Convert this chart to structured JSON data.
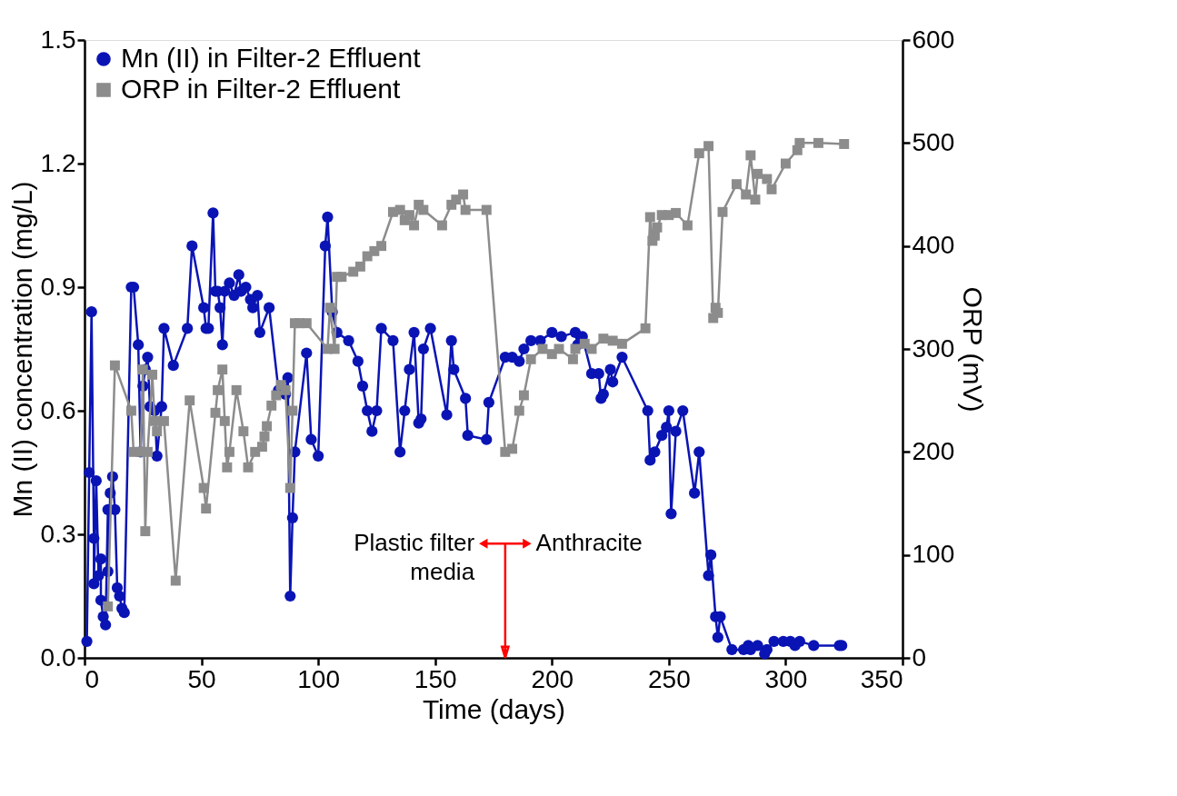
{
  "chart_data": {
    "type": "line",
    "xlabel": "Time (days)",
    "ylabel": "Mn (II) concentration (mg/L)",
    "y2label": "ORP (mV)",
    "xlim": [
      0,
      350
    ],
    "xticks": [
      0,
      50,
      100,
      150,
      200,
      250,
      300,
      350
    ],
    "ylim": [
      0,
      1.5
    ],
    "yticks": [
      {
        "value": 0,
        "label": "0.0"
      },
      0.3,
      0.6,
      0.9,
      1.2,
      1.5
    ],
    "y2lim": [
      0,
      600
    ],
    "y2ticks": [
      0,
      100,
      200,
      300,
      400,
      500,
      600
    ],
    "grid": false,
    "legend": "top left",
    "line_style": "solid",
    "series": [
      {
        "name": "Mn (II) in Filter-2 Effluent",
        "color": "#0a14b4",
        "marker": "circle",
        "x": [
          1,
          2,
          3,
          4,
          4,
          5,
          6,
          7,
          7,
          8,
          9,
          10,
          10,
          11,
          12,
          13,
          14,
          15,
          16,
          17,
          20,
          21,
          23,
          24,
          25,
          26,
          27,
          28,
          30,
          31,
          33,
          34,
          38,
          44,
          46,
          51,
          52,
          53,
          55,
          56,
          57,
          58,
          59,
          60,
          62,
          64,
          66,
          67,
          69,
          71,
          72,
          74,
          75,
          79,
          83,
          85,
          86,
          87,
          88,
          89,
          90,
          95,
          97,
          100,
          103,
          104,
          106,
          108,
          113,
          117,
          119,
          121,
          123,
          125,
          127,
          132,
          135,
          137,
          139,
          141,
          143,
          144,
          145,
          148,
          155,
          157,
          158,
          163,
          164,
          172,
          173,
          180,
          183,
          186,
          188,
          191,
          195,
          200,
          204,
          210,
          211,
          213,
          217,
          220,
          221,
          222,
          225,
          226,
          230,
          241,
          242,
          244,
          247,
          249,
          250,
          251,
          253,
          256,
          261,
          263,
          267,
          268,
          270,
          271,
          272,
          277,
          282,
          284,
          285,
          288,
          291,
          292,
          295,
          299,
          302,
          304,
          306,
          312,
          323,
          324
        ],
        "values": [
          0.04,
          0.45,
          0.84,
          0.29,
          0.18,
          0.43,
          0.2,
          0.24,
          0.14,
          0.1,
          0.08,
          0.36,
          0.21,
          0.4,
          0.44,
          0.36,
          0.17,
          0.15,
          0.12,
          0.11,
          0.9,
          0.9,
          0.76,
          0.5,
          0.66,
          0.7,
          0.73,
          0.61,
          0.6,
          0.49,
          0.61,
          0.8,
          0.71,
          0.8,
          1.0,
          0.85,
          0.8,
          0.8,
          1.08,
          0.89,
          0.89,
          0.85,
          0.76,
          0.89,
          0.91,
          0.88,
          0.93,
          0.89,
          0.9,
          0.87,
          0.85,
          0.88,
          0.79,
          0.85,
          0.65,
          0.65,
          0.64,
          0.68,
          0.15,
          0.34,
          0.5,
          0.74,
          0.53,
          0.49,
          1.0,
          1.07,
          0.84,
          0.79,
          0.77,
          0.72,
          0.66,
          0.6,
          0.55,
          0.6,
          0.8,
          0.77,
          0.5,
          0.6,
          0.7,
          0.79,
          0.57,
          0.58,
          0.75,
          0.8,
          0.59,
          0.77,
          0.7,
          0.63,
          0.54,
          0.53,
          0.62,
          0.73,
          0.73,
          0.72,
          0.75,
          0.77,
          0.77,
          0.79,
          0.78,
          0.79,
          0.76,
          0.78,
          0.69,
          0.69,
          0.63,
          0.64,
          0.7,
          0.67,
          0.73,
          0.6,
          0.48,
          0.5,
          0.54,
          0.56,
          0.6,
          0.35,
          0.55,
          0.6,
          0.4,
          0.5,
          0.2,
          0.25,
          0.1,
          0.05,
          0.1,
          0.02,
          0.02,
          0.03,
          0.02,
          0.03,
          0.01,
          0.02,
          0.04,
          0.04,
          0.04,
          0.03,
          0.04,
          0.03,
          0.03,
          0.03
        ]
      },
      {
        "name": "ORP in Filter-2 Effluent",
        "color": "#8c8c8c",
        "marker": "square",
        "axis": "y2",
        "x": [
          10,
          13,
          20,
          21,
          24,
          25,
          26,
          27,
          29,
          30,
          31,
          34,
          39,
          45,
          51,
          52,
          56,
          57,
          59,
          60,
          61,
          62,
          65,
          68,
          70,
          73,
          76,
          77,
          78,
          80,
          82,
          84,
          86,
          88,
          89,
          90,
          92,
          95,
          104,
          105,
          107,
          108,
          110,
          115,
          118,
          121,
          124,
          127,
          132,
          135,
          137,
          139,
          141,
          143,
          145,
          153,
          157,
          159,
          162,
          163,
          172,
          180,
          183,
          186,
          188,
          191,
          196,
          200,
          203,
          209,
          210,
          214,
          217,
          222,
          226,
          230,
          240,
          242,
          243,
          244,
          245,
          247,
          250,
          253,
          258,
          263,
          267,
          269,
          270,
          271,
          273,
          279,
          283,
          285,
          287,
          288,
          292,
          294,
          300,
          305,
          306,
          314,
          325
        ],
        "values": [
          50,
          284,
          240,
          200,
          200,
          280,
          123,
          200,
          275,
          230,
          220,
          230,
          75,
          250,
          165,
          145,
          238,
          260,
          280,
          230,
          185,
          200,
          260,
          220,
          185,
          200,
          205,
          215,
          225,
          245,
          255,
          265,
          260,
          165,
          240,
          325,
          325,
          325,
          300,
          340,
          300,
          370,
          370,
          375,
          380,
          390,
          395,
          400,
          433,
          435,
          425,
          430,
          420,
          440,
          435,
          420,
          440,
          445,
          450,
          435,
          435,
          200,
          203,
          240,
          255,
          290,
          300,
          295,
          300,
          290,
          300,
          305,
          300,
          310,
          308,
          305,
          320,
          428,
          405,
          410,
          418,
          430,
          430,
          432,
          420,
          490,
          497,
          330,
          340,
          335,
          433,
          460,
          450,
          488,
          445,
          470,
          465,
          455,
          480,
          493,
          500,
          500,
          499
        ]
      }
    ],
    "ref_lines": [
      {
        "axis": "x",
        "value": 180,
        "color": "#ff0000"
      }
    ],
    "annotations": [
      "Plastic filter media",
      "Anthracite"
    ]
  }
}
